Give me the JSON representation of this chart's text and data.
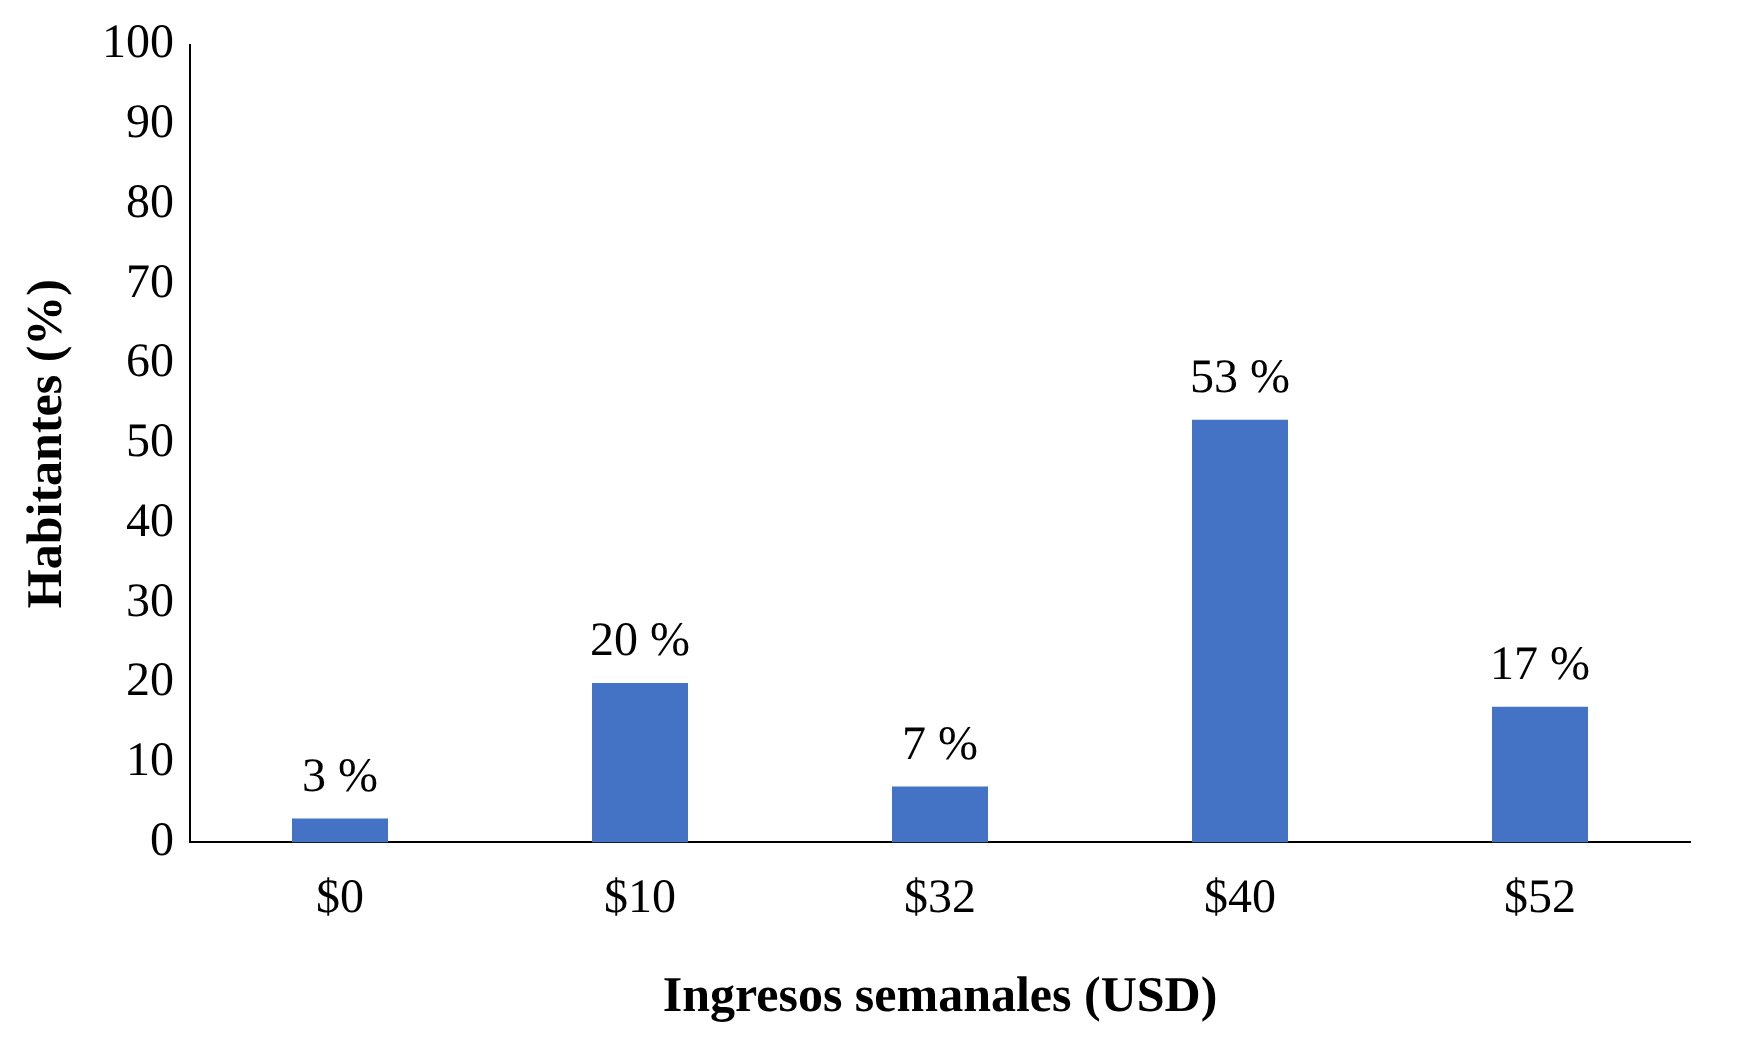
{
  "chart_data": {
    "type": "bar",
    "xlabel": "Ingresos semanales (USD)",
    "ylabel": "Habitantes (%)",
    "categories": [
      "$0",
      "$10",
      "$32",
      "$40",
      "$52"
    ],
    "values": [
      3,
      20,
      7,
      53,
      17
    ],
    "value_labels": [
      "3 %",
      "20 %",
      "7 %",
      "53 %",
      "17 %"
    ],
    "color": "#4472c4",
    "ylim": [
      0,
      100
    ],
    "yticks": [
      0,
      10,
      20,
      30,
      40,
      50,
      60,
      70,
      80,
      90,
      100
    ],
    "grid": false,
    "legend": false
  }
}
